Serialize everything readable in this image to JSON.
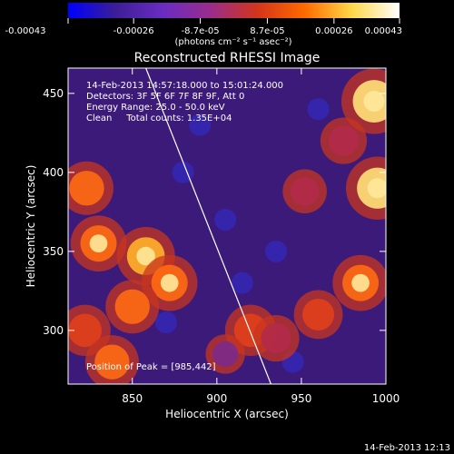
{
  "chart_data": {
    "type": "heatmap",
    "title": "Reconstructed RHESSI Image",
    "xlabel": "Heliocentric X (arcsec)",
    "ylabel": "Heliocentric Y (arcsec)",
    "xlim": [
      812,
      1000
    ],
    "ylim": [
      266,
      466
    ],
    "x_ticks": [
      850,
      900,
      950,
      1000
    ],
    "y_ticks": [
      300,
      350,
      400,
      450
    ],
    "colorbar": {
      "min": -0.00043,
      "max": 0.00043,
      "tick_values": [
        -0.00043,
        -0.00026,
        -8.7e-05,
        8.7e-05,
        0.00026,
        0.00043
      ],
      "tick_labels": [
        "-0.00043",
        "-0.00026",
        "-8.7e-05",
        "8.7e-05",
        "0.00026",
        "0.00043"
      ],
      "unit_label": "(photons cm⁻² s⁻¹ asec⁻²)",
      "colors": [
        "#0000ff",
        "#3c1e96",
        "#6a2cc3",
        "#9a2c8c",
        "#d3351a",
        "#ff6a00",
        "#ffd84a",
        "#ffffff"
      ]
    },
    "annotations": {
      "time_range": "14-Feb-2013 14:57:18.000 to 15:01:24.000",
      "detectors": "Detectors: 3F 5F 6F 7F 8F 9F, Att 0",
      "energy_range": "Energy Range: 25.0 - 50.0 keV",
      "clean": "Clean     Total counts: 1.35E+04",
      "peak": "Position of Peak = [985,442]"
    },
    "limb_line": {
      "x": [
        858,
        932
      ],
      "y": [
        466,
        266
      ]
    },
    "bright_regions": [
      {
        "x": 993,
        "y": 445,
        "level": 1.0
      },
      {
        "x": 995,
        "y": 390,
        "level": 0.95
      },
      {
        "x": 985,
        "y": 330,
        "level": 0.8
      },
      {
        "x": 823,
        "y": 390,
        "level": 0.75
      },
      {
        "x": 830,
        "y": 355,
        "level": 0.8
      },
      {
        "x": 858,
        "y": 347,
        "level": 0.85
      },
      {
        "x": 872,
        "y": 330,
        "level": 0.8
      },
      {
        "x": 850,
        "y": 315,
        "level": 0.75
      },
      {
        "x": 822,
        "y": 300,
        "level": 0.7
      },
      {
        "x": 838,
        "y": 280,
        "level": 0.75
      },
      {
        "x": 920,
        "y": 300,
        "level": 0.7
      },
      {
        "x": 935,
        "y": 295,
        "level": 0.6
      },
      {
        "x": 960,
        "y": 310,
        "level": 0.65
      },
      {
        "x": 952,
        "y": 388,
        "level": 0.55
      },
      {
        "x": 975,
        "y": 420,
        "level": 0.6
      },
      {
        "x": 905,
        "y": 285,
        "level": 0.45
      }
    ]
  },
  "footer": {
    "timestamp": "14-Feb-2013 12:13"
  }
}
